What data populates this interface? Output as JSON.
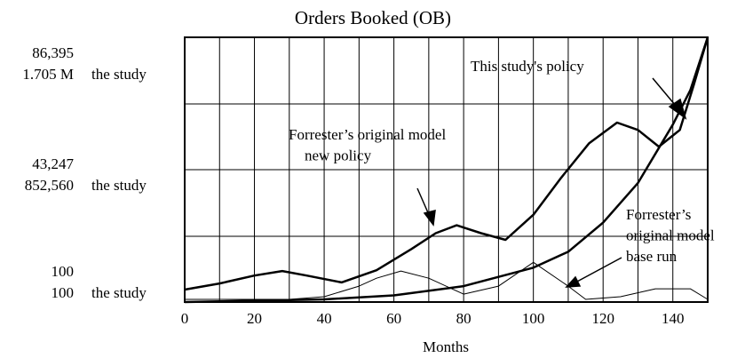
{
  "chart_data": {
    "type": "line",
    "title": "Orders Booked (OB)",
    "x_label": "Months",
    "y2_label": "the study",
    "xlim": [
      0,
      150
    ],
    "xticks": [
      0,
      20,
      40,
      60,
      80,
      100,
      120,
      140
    ],
    "ylim": [
      100,
      86395
    ],
    "yticks": [
      {
        "value": 86395,
        "label": "86,395"
      },
      {
        "value": 43247,
        "label": "43,247"
      },
      100
    ],
    "y2lim": [
      100,
      1705000
    ],
    "y2ticks": [
      {
        "value": 1705000,
        "label": "1.705 M"
      },
      {
        "value": 852560,
        "label": "852,560"
      },
      100
    ],
    "grid": true,
    "series": [
      {
        "name": "Forrester's original model base run",
        "color": "#000000",
        "x": [
          0,
          10,
          20,
          30,
          40,
          50,
          55,
          62,
          70,
          80,
          90,
          100,
          110,
          115,
          125,
          135,
          145,
          150
        ],
        "values": [
          963,
          963,
          963,
          963,
          1826,
          5278,
          7867,
          10197,
          7867,
          2689,
          5278,
          13044,
          5278,
          963,
          1826,
          4415,
          4415,
          963
        ]
      },
      {
        "name": "Forrester's original model new policy",
        "color": "#000000",
        "x": [
          0,
          10,
          20,
          28,
          35,
          45,
          55,
          65,
          72,
          78,
          85,
          92,
          100,
          108,
          116,
          124,
          130,
          136,
          142,
          146,
          150
        ],
        "values": [
          4156,
          6141,
          8730,
          10197,
          8730,
          6486,
          10455,
          17359,
          22537,
          25126,
          22537,
          20379,
          28577,
          40659,
          51877,
          58608,
          56192,
          50755,
          56192,
          70862,
          86395
        ]
      },
      {
        "name": "This study's policy",
        "color": "#000000",
        "axis": "y2",
        "x": [
          0,
          20,
          40,
          60,
          80,
          100,
          110,
          120,
          130,
          140,
          145,
          150
        ],
        "values": [
          100,
          8625,
          17149,
          42723,
          102394,
          221737,
          324031,
          511570,
          767305,
          1142383,
          1364020,
          1705000
        ]
      }
    ],
    "annotations": [
      {
        "lines": [
          "This study's policy"
        ]
      },
      {
        "lines": [
          "Forrester’s original model",
          "new policy"
        ]
      },
      {
        "lines": [
          "Forrester’s",
          "original model",
          "base run"
        ]
      }
    ]
  }
}
